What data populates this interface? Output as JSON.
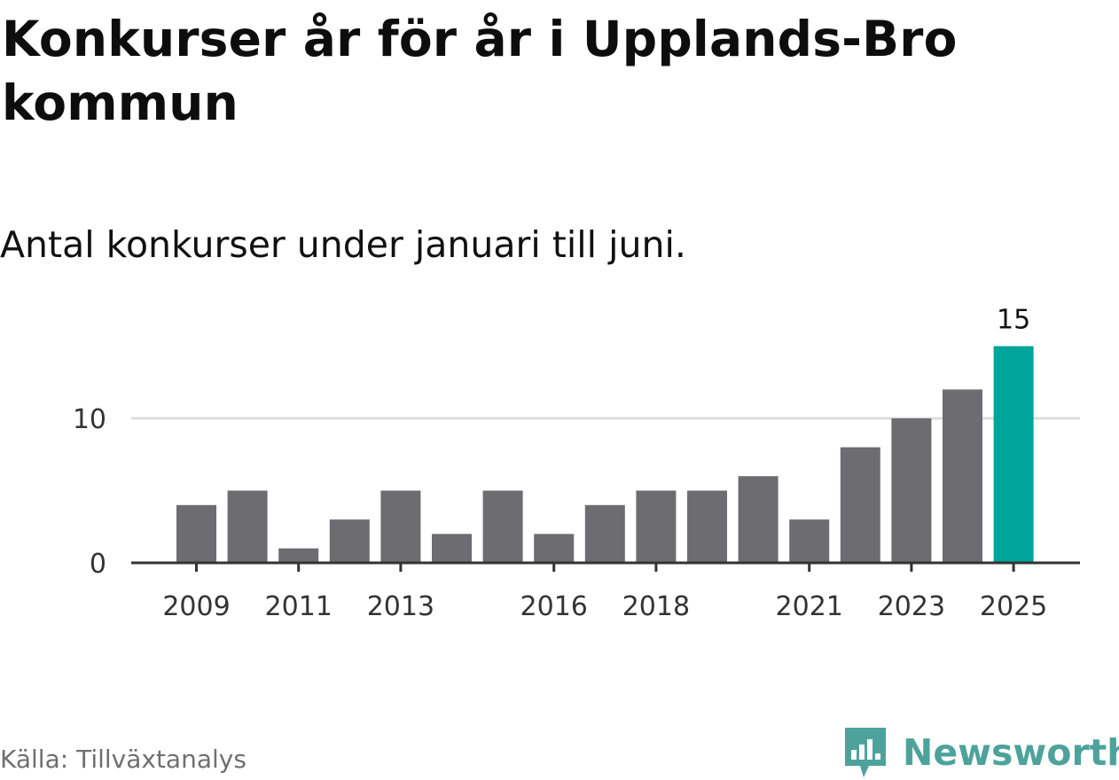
{
  "title": "Konkurser år för år i Upplands-Bro kommun",
  "subtitle": "Antal konkurser under januari till juni.",
  "source": "Källa: Tillväxtanalys",
  "brand": {
    "name": "Newsworthy",
    "icon": "newsworthy-logo-icon",
    "color": "#4da39b"
  },
  "colors": {
    "bar": "#6d6c71",
    "highlight": "#00a49a",
    "grid": "#dddddd",
    "axis": "#333333",
    "text": "#333333"
  },
  "chart_data": {
    "type": "bar",
    "title": "Konkurser år för år i Upplands-Bro kommun",
    "subtitle": "Antal konkurser under januari till juni.",
    "categories": [
      "2009",
      "2010",
      "2011",
      "2012",
      "2013",
      "2014",
      "2015",
      "2016",
      "2017",
      "2018",
      "2019",
      "2020",
      "2021",
      "2022",
      "2023",
      "2024",
      "2025"
    ],
    "values": [
      4,
      5,
      1,
      3,
      5,
      2,
      5,
      2,
      4,
      5,
      5,
      6,
      3,
      8,
      10,
      12,
      15
    ],
    "tick_labels": [
      "2009",
      "2011",
      "2013",
      "2016",
      "2018",
      "2021",
      "2023",
      "2025"
    ],
    "y_ticks": [
      0,
      10
    ],
    "ylim": [
      0,
      15
    ],
    "grid": true,
    "legend": "none",
    "highlight_category": "2025",
    "value_label": "15"
  }
}
